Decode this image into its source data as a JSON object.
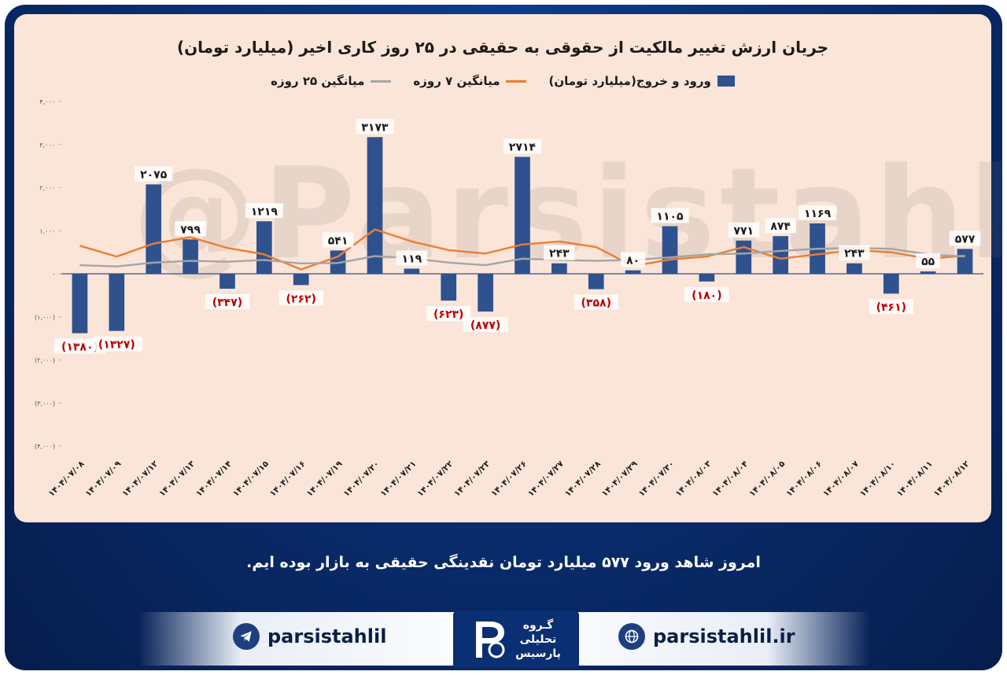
{
  "chart_data": {
    "type": "bar",
    "title": "جریان ارزش تغییر مالکیت از حقوقی به حقیقی در ۲۵ روز کاری اخیر (میلیارد تومان)",
    "categories": [
      "۱۴۰۴/۰۷/۰۸",
      "۱۴۰۴/۰۷/۰۹",
      "۱۴۰۴/۰۷/۱۲",
      "۱۴۰۴/۰۷/۱۳",
      "۱۴۰۴/۰۷/۱۴",
      "۱۴۰۴/۰۷/۱۵",
      "۱۴۰۴/۰۷/۱۶",
      "۱۴۰۴/۰۷/۱۹",
      "۱۴۰۴/۰۷/۲۰",
      "۱۴۰۴/۰۷/۲۱",
      "۱۴۰۴/۰۷/۲۲",
      "۱۴۰۴/۰۷/۲۳",
      "۱۴۰۴/۰۷/۲۶",
      "۱۴۰۴/۰۷/۲۷",
      "۱۴۰۴/۰۷/۲۸",
      "۱۴۰۴/۰۷/۲۹",
      "۱۴۰۴/۰۷/۳۰",
      "۱۴۰۴/۰۸/۰۳",
      "۱۴۰۴/۰۸/۰۴",
      "۱۴۰۴/۰۸/۰۵",
      "۱۴۰۴/۰۸/۰۶",
      "۱۴۰۴/۰۸/۰۷",
      "۱۴۰۴/۰۸/۱۰",
      "۱۴۰۴/۰۸/۱۱",
      "۱۴۰۴/۰۸/۱۲"
    ],
    "series": [
      {
        "name": "ورود و خروج(میلیارد تومان)",
        "kind": "bar",
        "color": "#2f528f",
        "values": [
          -1380,
          -1327,
          2075,
          799,
          -347,
          1219,
          -262,
          541,
          3173,
          119,
          -623,
          -877,
          2714,
          243,
          -358,
          80,
          1105,
          -180,
          771,
          874,
          1169,
          243,
          -461,
          55,
          577
        ],
        "labels": [
          "(۱۳۸۰)",
          "(۱۳۲۷)",
          "۲۰۷۵",
          "۷۹۹",
          "(۳۴۷)",
          "۱۲۱۹",
          "(۲۶۲)",
          "۵۴۱",
          "۳۱۷۳",
          "۱۱۹",
          "(۶۲۳)",
          "(۸۷۷)",
          "۲۷۱۴",
          "۲۴۳",
          "(۳۵۸)",
          "۸۰",
          "۱۱۰۵",
          "(۱۸۰)",
          "۷۷۱",
          "۸۷۴",
          "۱۱۶۹",
          "۲۴۳",
          "(۴۶۱)",
          "۵۵",
          "۵۷۷"
        ]
      },
      {
        "name": "میانگین ۷ روزه",
        "kind": "line",
        "color": "#ed7d31",
        "values": [
          650,
          400,
          700,
          850,
          600,
          450,
          100,
          400,
          1030,
          750,
          550,
          470,
          680,
          750,
          620,
          180,
          330,
          400,
          620,
          350,
          450,
          550,
          500,
          350,
          420
        ]
      },
      {
        "name": "میانگین ۲۵ روزه",
        "kind": "line",
        "color": "#a5a5a5",
        "values": [
          200,
          170,
          260,
          300,
          280,
          320,
          240,
          250,
          410,
          360,
          260,
          200,
          350,
          320,
          300,
          320,
          380,
          450,
          470,
          530,
          580,
          600,
          580,
          450,
          400
        ]
      }
    ],
    "ylim": [
      -4000,
      4000
    ],
    "yticks": [
      -4000,
      -3000,
      -2000,
      -1000,
      0,
      1000,
      2000,
      3000,
      4000
    ],
    "ytick_labels": [
      "(۴,۰۰۰)",
      "(۳,۰۰۰)",
      "(۲,۰۰۰)",
      "(۱,۰۰۰)",
      "-",
      "۱,۰۰۰",
      "۲,۰۰۰",
      "۳,۰۰۰",
      "۴,۰۰۰"
    ],
    "legend_position": "top-center",
    "grid": false
  },
  "watermark": "@Parsistahlil",
  "caption": "امروز شاهد ورود ۵۷۷ میلیارد تومان نقدینگی حقیقی به بازار بوده ایم.",
  "footer": {
    "telegram_handle": "parsistahlil",
    "website": "parsistahlil.ir",
    "logo_lines": [
      "گـروه",
      "تحلیلی",
      "پارسیس"
    ],
    "telegram_icon": "telegram-icon",
    "globe_icon": "globe-icon"
  }
}
